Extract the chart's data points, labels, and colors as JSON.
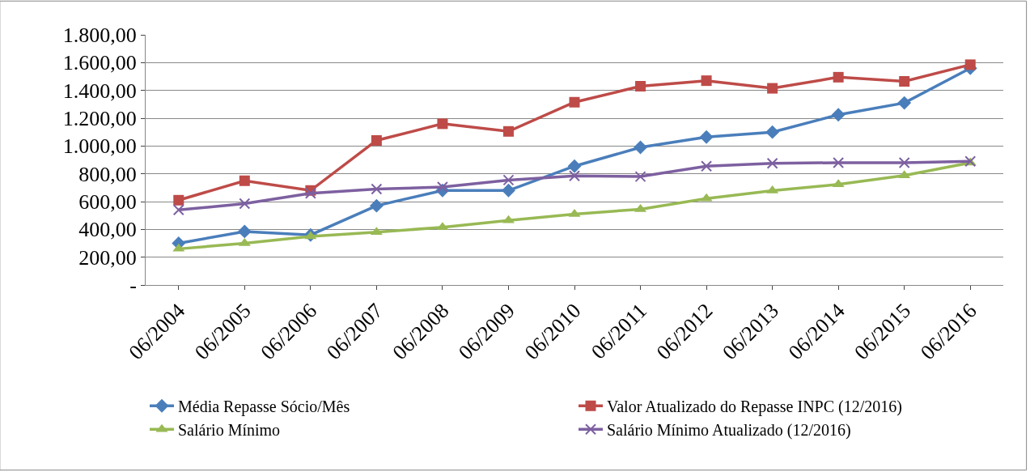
{
  "chart_data": {
    "type": "line",
    "categories": [
      "06/2004",
      "06/2005",
      "06/2006",
      "06/2007",
      "06/2008",
      "06/2009",
      "06/2010",
      "06/2011",
      "06/2012",
      "06/2013",
      "06/2014",
      "06/2015",
      "06/2016"
    ],
    "series": [
      {
        "name": "Média Repasse Sócio/Mês",
        "color": "#4a7ebb",
        "marker": "diamond",
        "values": [
          300,
          385,
          360,
          570,
          680,
          680,
          855,
          990,
          1065,
          1100,
          1225,
          1310,
          1560
        ]
      },
      {
        "name": "Valor Atualizado do Repasse INPC (12/2016)",
        "color": "#be4b48",
        "marker": "square",
        "values": [
          610,
          750,
          680,
          1040,
          1160,
          1105,
          1315,
          1430,
          1470,
          1415,
          1495,
          1465,
          1585
        ]
      },
      {
        "name": "Salário Mínimo",
        "color": "#98b954",
        "marker": "triangle",
        "values": [
          260,
          300,
          350,
          380,
          415,
          465,
          510,
          545,
          622,
          678,
          724,
          788,
          880
        ]
      },
      {
        "name": "Salário Mínimo Atualizado (12/2016)",
        "color": "#7d60a0",
        "marker": "cross",
        "values": [
          540,
          585,
          660,
          690,
          705,
          755,
          785,
          780,
          855,
          875,
          880,
          880,
          890
        ]
      }
    ],
    "ylim": [
      0,
      1800
    ],
    "yticks": [
      {
        "value": 0,
        "label": "-"
      },
      {
        "value": 200,
        "label": "200,00"
      },
      {
        "value": 400,
        "label": "400,00"
      },
      {
        "value": 600,
        "label": "600,00"
      },
      {
        "value": 800,
        "label": "800,00"
      },
      {
        "value": 1000,
        "label": "1.000,00"
      },
      {
        "value": 1200,
        "label": "1.200,00"
      },
      {
        "value": 1400,
        "label": "1.400,00"
      },
      {
        "value": 1600,
        "label": "1.600,00"
      },
      {
        "value": 1800,
        "label": "1.800,00"
      }
    ],
    "grid": "y",
    "legend": "bottom",
    "line_style": "solid"
  }
}
